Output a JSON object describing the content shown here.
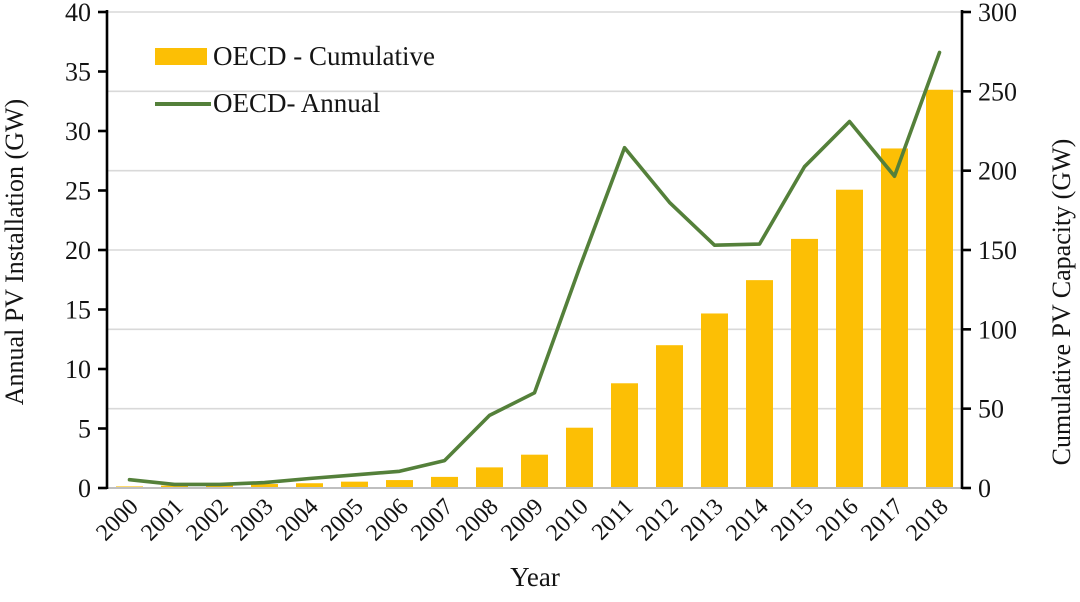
{
  "chart_data": {
    "type": "bar",
    "subtype": "combo-bar-line-dual-axis",
    "title": "",
    "categories": [
      "2000",
      "2001",
      "2002",
      "2003",
      "2004",
      "2005",
      "2006",
      "2007",
      "2008",
      "2009",
      "2010",
      "2011",
      "2012",
      "2013",
      "2014",
      "2015",
      "2016",
      "2017",
      "2018"
    ],
    "series": [
      {
        "name": "OECD - Cumulative",
        "type": "bar",
        "axis": "right",
        "values": [
          1,
          1.5,
          2,
          2.5,
          3,
          4,
          5,
          7,
          13,
          21,
          38,
          66,
          90,
          110,
          131,
          157,
          188,
          214,
          251
        ]
      },
      {
        "name": "OECD- Annual",
        "type": "line",
        "axis": "left",
        "values": [
          0.7,
          0.3,
          0.3,
          0.45,
          0.8,
          1.1,
          1.4,
          2.3,
          6.1,
          8.0,
          18.5,
          28.6,
          24.0,
          20.4,
          20.5,
          27.0,
          30.8,
          26.2,
          36.6
        ]
      }
    ],
    "xlabel": "Year",
    "left_axis": {
      "label": "Annual PV Installation (GW)",
      "min": 0,
      "max": 40,
      "ticks": [
        0,
        5,
        10,
        15,
        20,
        25,
        30,
        35,
        40
      ]
    },
    "right_axis": {
      "label": "Cumulative PV Capacity (GW)",
      "min": 0,
      "max": 300,
      "ticks": [
        0,
        50,
        100,
        150,
        200,
        250,
        300
      ]
    },
    "legend_position": "inside-top-left",
    "grid": "horizontal gridlines at right-axis tick levels"
  },
  "colors": {
    "bar": "#FCBF05",
    "line": "#54803A",
    "grid": "#D9D9D9",
    "axis": "#000000",
    "baseline": "#BFBFBF",
    "text": "#141414",
    "background": "#FFFFFF"
  }
}
